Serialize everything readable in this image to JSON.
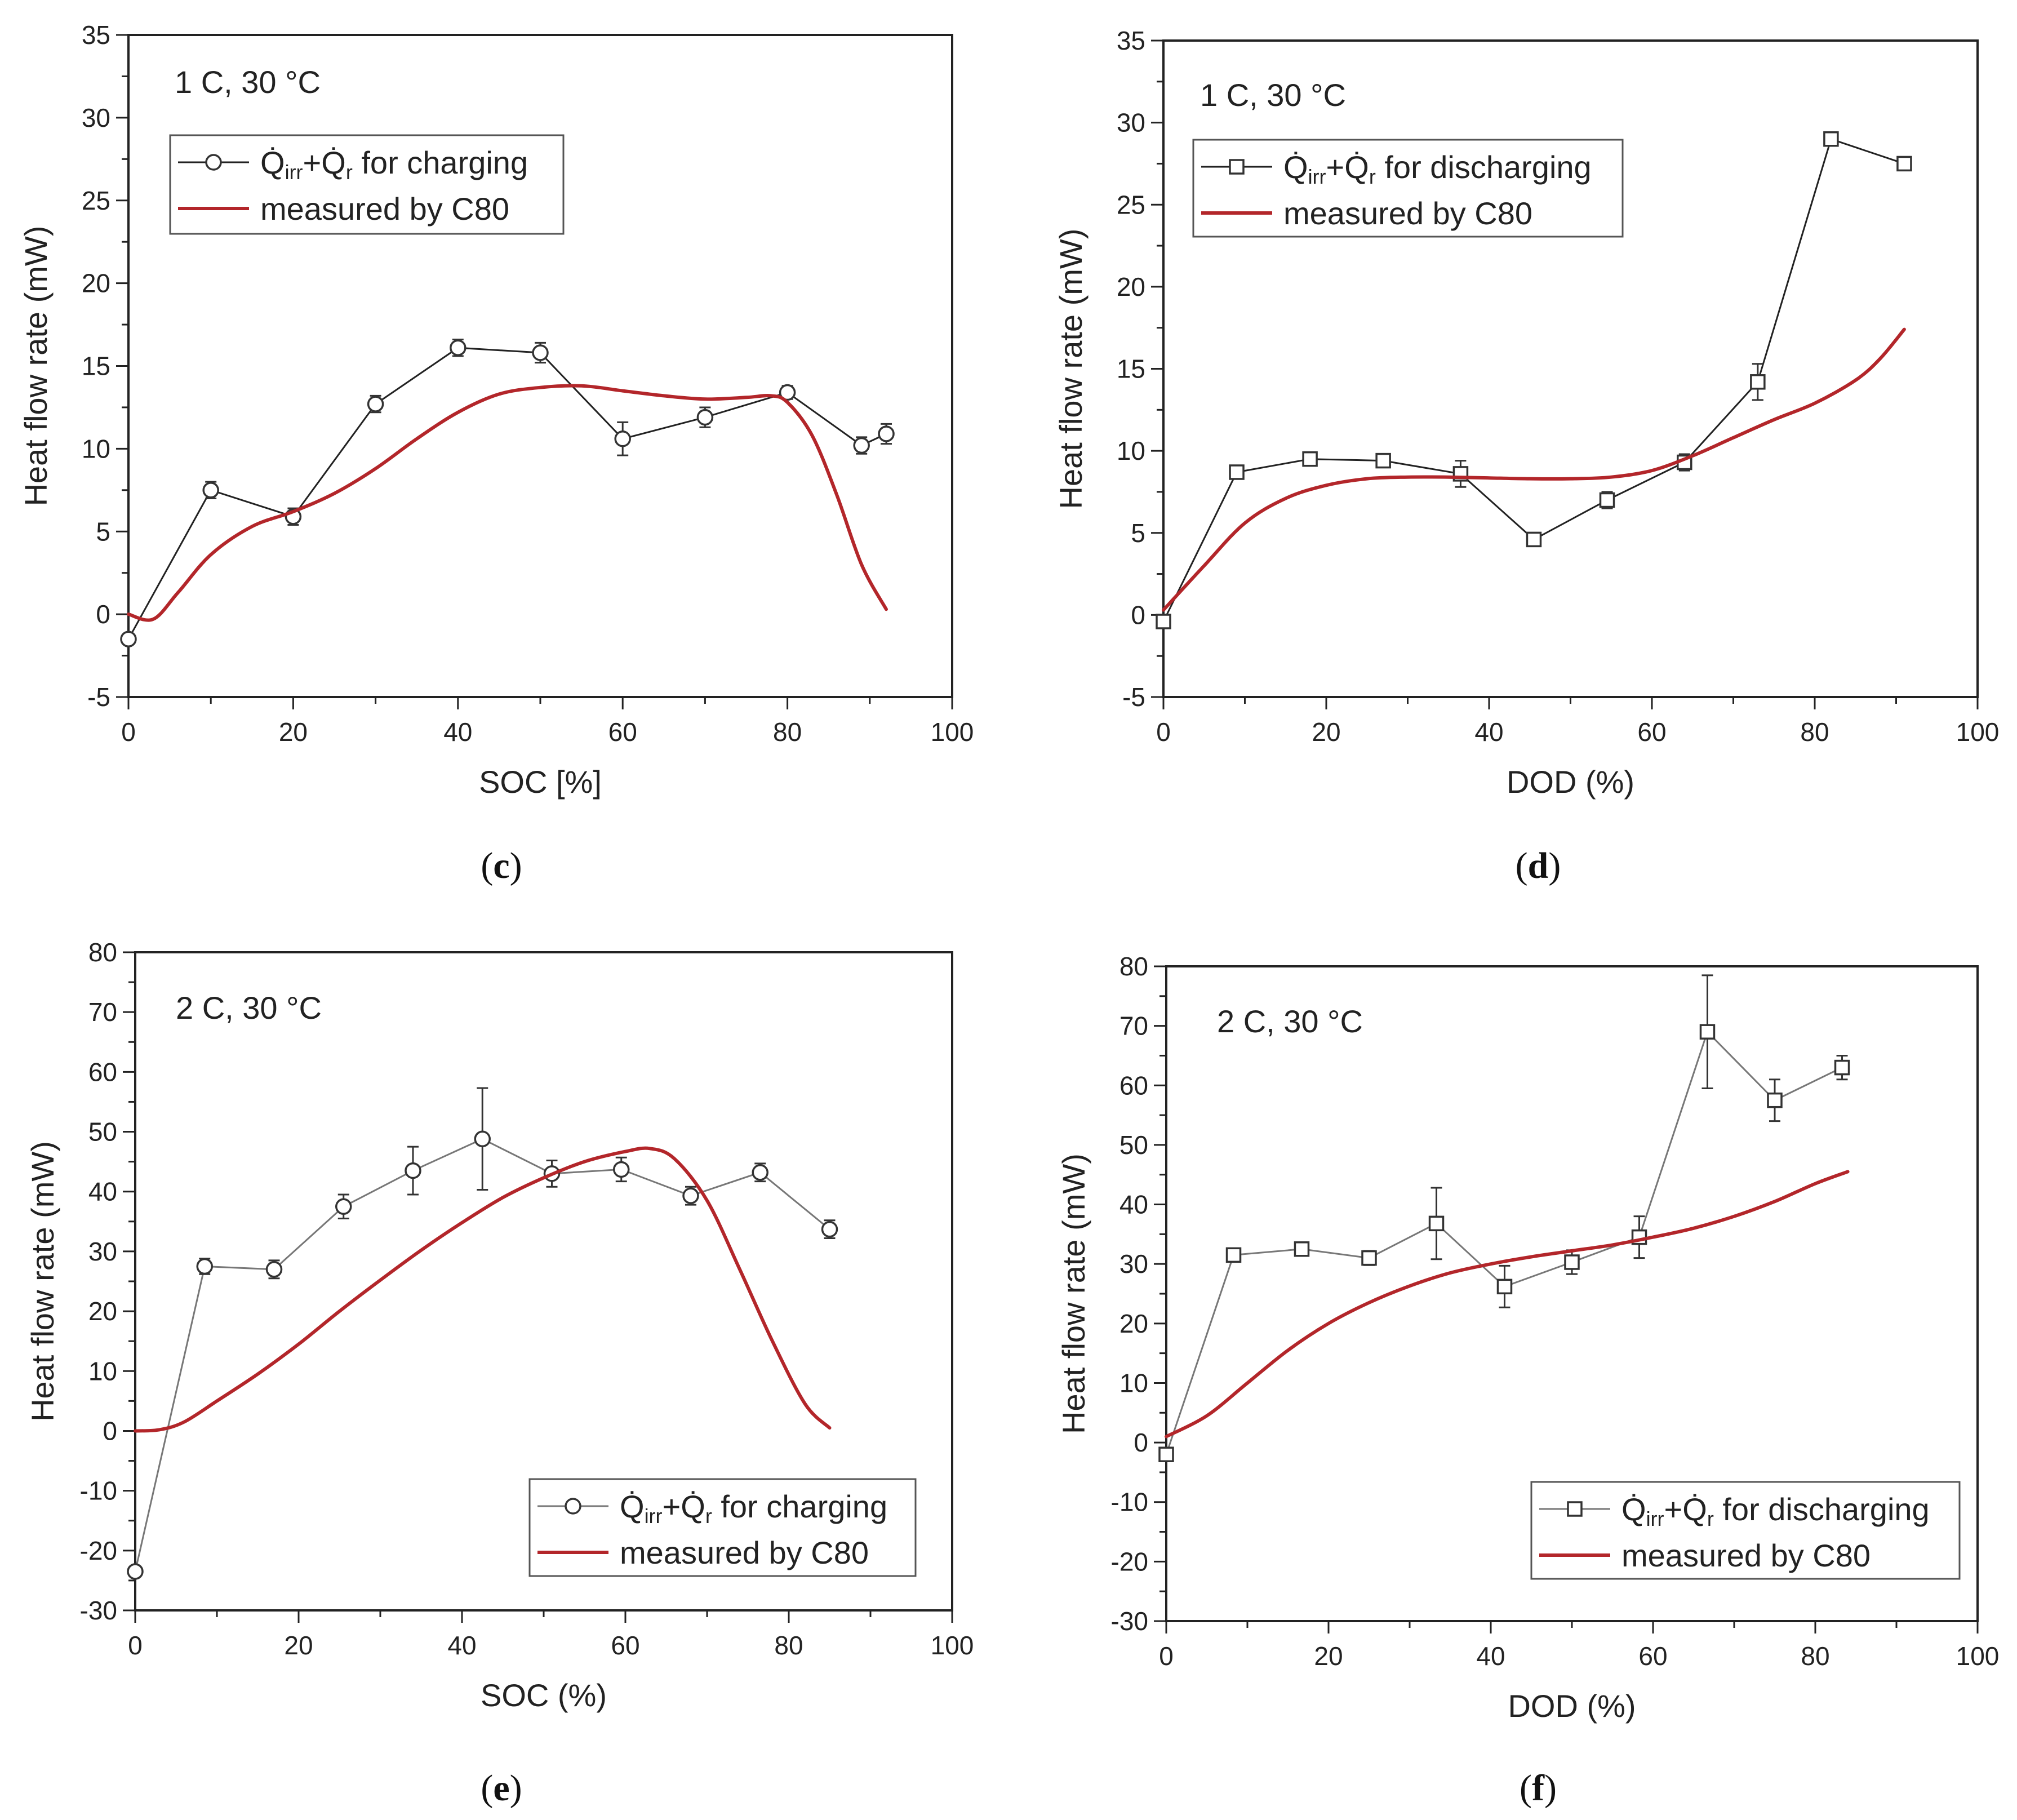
{
  "colors": {
    "axis": "#222222",
    "model_line": "#222222",
    "model_line_light": "#777777",
    "measured_line": "#b3262a",
    "marker_fill": "#ffffff"
  },
  "chart_data": [
    {
      "id": "c",
      "type": "line",
      "panel_label": "c",
      "annotation": "1 C, 30 °C",
      "xlabel": "SOC [%]",
      "ylabel": "Heat flow rate (mW)",
      "xlim": [
        0,
        100
      ],
      "ylim": [
        -5,
        35
      ],
      "xticks": [
        0,
        20,
        40,
        60,
        80,
        100
      ],
      "yticks": [
        -5,
        0,
        5,
        10,
        15,
        20,
        25,
        30,
        35
      ],
      "legend_position": "top-left",
      "series": [
        {
          "name": "Q̇irr+Q̇r for charging",
          "legend_label": {
            "main": "Q̇",
            "sub1": "irr",
            "plus": "+Q̇",
            "sub2": "r",
            "rest": " for charging"
          },
          "kind": "markers",
          "marker": "circle",
          "x": [
            0,
            10,
            20,
            30,
            40,
            50,
            60,
            70,
            80,
            89,
            92
          ],
          "y": [
            -1.5,
            7.5,
            5.9,
            12.7,
            16.1,
            15.8,
            10.6,
            11.9,
            13.4,
            10.2,
            10.9
          ],
          "err": [
            0.2,
            0.5,
            0.5,
            0.5,
            0.5,
            0.6,
            1.0,
            0.6,
            0.4,
            0.5,
            0.6
          ]
        },
        {
          "name": "measured by C80",
          "legend_label": {
            "rest": "measured by C80"
          },
          "kind": "smooth",
          "x": [
            0,
            3,
            6,
            10,
            15,
            20,
            25,
            30,
            35,
            40,
            45,
            50,
            55,
            60,
            65,
            70,
            75,
            78,
            80,
            83,
            86,
            89,
            92
          ],
          "y": [
            0,
            -0.3,
            1.3,
            3.6,
            5.3,
            6.2,
            7.3,
            8.8,
            10.6,
            12.2,
            13.3,
            13.7,
            13.8,
            13.5,
            13.2,
            13.0,
            13.1,
            13.2,
            12.8,
            10.8,
            7.2,
            3.0,
            0.3
          ]
        }
      ]
    },
    {
      "id": "d",
      "type": "line",
      "panel_label": "d",
      "annotation": "1 C, 30 °C",
      "xlabel": "DOD (%)",
      "ylabel": "Heat flow rate (mW)",
      "xlim": [
        0,
        100
      ],
      "ylim": [
        -5,
        35
      ],
      "xticks": [
        0,
        20,
        40,
        60,
        80,
        100
      ],
      "yticks": [
        -5,
        0,
        5,
        10,
        15,
        20,
        25,
        30,
        35
      ],
      "legend_position": "top-left",
      "series": [
        {
          "name": "Q̇irr+Q̇r for discharging",
          "legend_label": {
            "main": "Q̇",
            "sub1": "irr",
            "plus": "+Q̇",
            "sub2": "r",
            "rest": " for discharging"
          },
          "kind": "markers",
          "marker": "square",
          "x": [
            0,
            9,
            18,
            27,
            36.5,
            45.5,
            54.5,
            64,
            73,
            82,
            91
          ],
          "y": [
            -0.4,
            8.7,
            9.5,
            9.4,
            8.6,
            4.6,
            7.0,
            9.3,
            14.2,
            29.0,
            27.5
          ],
          "err": [
            0.2,
            0.3,
            0.3,
            0.3,
            0.8,
            0.3,
            0.5,
            0.5,
            1.1,
            0.4,
            0.3
          ]
        },
        {
          "name": "measured by C80",
          "legend_label": {
            "rest": "measured by C80"
          },
          "kind": "smooth",
          "x": [
            0,
            5,
            10,
            15,
            20,
            25,
            30,
            35,
            40,
            45,
            50,
            55,
            60,
            65,
            70,
            75,
            80,
            85,
            88,
            91
          ],
          "y": [
            0.3,
            3.0,
            5.6,
            7.1,
            7.9,
            8.3,
            8.4,
            8.4,
            8.35,
            8.3,
            8.3,
            8.4,
            8.8,
            9.7,
            10.8,
            11.9,
            12.9,
            14.3,
            15.6,
            17.4
          ]
        }
      ]
    },
    {
      "id": "e",
      "type": "line",
      "panel_label": "e",
      "annotation": "2 C, 30 °C",
      "xlabel": "SOC (%)",
      "ylabel": "Heat flow rate (mW)",
      "xlim": [
        0,
        100
      ],
      "ylim": [
        -30,
        80
      ],
      "xticks": [
        0,
        20,
        40,
        60,
        80,
        100
      ],
      "yticks": [
        -30,
        -20,
        -10,
        0,
        10,
        20,
        30,
        40,
        50,
        60,
        70,
        80
      ],
      "legend_position": "bottom-right",
      "series": [
        {
          "name": "Q̇irr+Q̇r for charging",
          "legend_label": {
            "main": "Q̇",
            "sub1": "irr",
            "plus": "+Q̇",
            "sub2": "r",
            "rest": " for charging"
          },
          "kind": "markers",
          "marker": "circle",
          "x": [
            0,
            8.5,
            17,
            25.5,
            34,
            42.5,
            51,
            59.5,
            68,
            76.5,
            85
          ],
          "y": [
            -23.5,
            27.5,
            27.0,
            37.5,
            43.5,
            48.8,
            43.0,
            43.7,
            39.3,
            43.2,
            33.7
          ],
          "err": [
            0.5,
            1.3,
            1.5,
            2.0,
            4.0,
            8.5,
            2.2,
            2.0,
            1.5,
            1.5,
            1.5
          ]
        },
        {
          "name": "measured by C80",
          "legend_label": {
            "rest": "measured by C80"
          },
          "kind": "smooth",
          "x": [
            0,
            3,
            6,
            10,
            15,
            20,
            25,
            30,
            35,
            40,
            45,
            50,
            55,
            60,
            63,
            66,
            70,
            74,
            78,
            82,
            85
          ],
          "y": [
            0,
            0.2,
            1.5,
            5.0,
            9.5,
            14.5,
            20.0,
            25.2,
            30.2,
            34.8,
            39.0,
            42.3,
            45.0,
            46.7,
            47.2,
            45.5,
            38.5,
            27.0,
            15.0,
            4.5,
            0.5
          ]
        }
      ]
    },
    {
      "id": "f",
      "type": "line",
      "panel_label": "f",
      "annotation": "2 C, 30 °C",
      "xlabel": "DOD (%)",
      "ylabel": "Heat flow rate (mW)",
      "xlim": [
        0,
        100
      ],
      "ylim": [
        -30,
        80
      ],
      "xticks": [
        0,
        20,
        40,
        60,
        80,
        100
      ],
      "yticks": [
        -30,
        -20,
        -10,
        0,
        10,
        20,
        30,
        40,
        50,
        60,
        70,
        80
      ],
      "legend_position": "bottom-right",
      "series": [
        {
          "name": "Q̇irr+Q̇r for discharging",
          "legend_label": {
            "main": "Q̇",
            "sub1": "irr",
            "plus": "+Q̇",
            "sub2": "r",
            "rest": " for discharging"
          },
          "kind": "markers",
          "marker": "square",
          "x": [
            0,
            8.3,
            16.7,
            25,
            33.3,
            41.7,
            50,
            58.3,
            66.7,
            75,
            83.3
          ],
          "y": [
            -2.0,
            31.5,
            32.5,
            31.0,
            36.8,
            26.2,
            30.3,
            34.5,
            69.0,
            57.5,
            63.0
          ],
          "err": [
            0.5,
            1.0,
            1.0,
            1.2,
            6.0,
            3.5,
            2.0,
            3.5,
            9.5,
            3.5,
            2.0
          ]
        },
        {
          "name": "measured by C80",
          "legend_label": {
            "rest": "measured by C80"
          },
          "kind": "smooth",
          "x": [
            0,
            5,
            10,
            15,
            20,
            25,
            30,
            35,
            40,
            45,
            50,
            55,
            60,
            65,
            70,
            75,
            80,
            84
          ],
          "y": [
            1,
            4.5,
            10,
            15.5,
            20,
            23.5,
            26.3,
            28.5,
            30.0,
            31.2,
            32.2,
            33.2,
            34.5,
            36.0,
            38.0,
            40.5,
            43.5,
            45.5
          ]
        }
      ]
    }
  ]
}
